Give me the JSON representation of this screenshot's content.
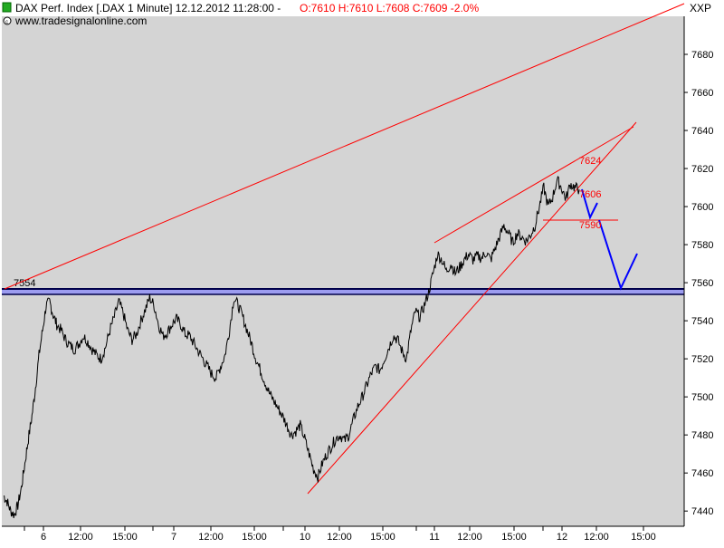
{
  "header": {
    "title_prefix": "DAX Perf. Index [.DAX  1 Minute] 12.12.2012 11:28:00 -",
    "ohlc_text": "O:7610 H:7610 L:7608 C:7609 -2.0%",
    "source": "www.tradesignalonline.com",
    "symbol_tag": "XXP"
  },
  "colors": {
    "plot_bg": "#d4d4d4",
    "page_bg": "#ffffff",
    "price": "#000000",
    "trendline": "#ff0000",
    "projection": "#0000ff",
    "support_band": "#9c9cf0",
    "support_edge": "#00004a",
    "ohlc_text": "#ff0000"
  },
  "chart_data": {
    "type": "line",
    "ylim": [
      7432,
      7700
    ],
    "y_ticks": [
      7440,
      7460,
      7480,
      7500,
      7520,
      7540,
      7560,
      7580,
      7600,
      7620,
      7640,
      7660,
      7680
    ],
    "x_tick_labels": [
      "6",
      "12:00",
      "15:00",
      "7",
      "12:00",
      "15:00",
      "10",
      "12:00",
      "15:00",
      "11",
      "12:00",
      "15:00",
      "12",
      "12:00",
      "15:00"
    ],
    "price_series": {
      "name": "DAX",
      "points": [
        [
          0,
          7448
        ],
        [
          0.4,
          7445
        ],
        [
          0.8,
          7440
        ],
        [
          1.2,
          7438
        ],
        [
          1.6,
          7443
        ],
        [
          2.0,
          7452
        ],
        [
          2.4,
          7465
        ],
        [
          2.8,
          7478
        ],
        [
          3.2,
          7490
        ],
        [
          3.6,
          7505
        ],
        [
          4.0,
          7522
        ],
        [
          4.4,
          7535
        ],
        [
          4.8,
          7548
        ],
        [
          5.2,
          7550
        ],
        [
          5.6,
          7543
        ],
        [
          6.0,
          7538
        ],
        [
          6.5,
          7535
        ],
        [
          7.0,
          7530
        ],
        [
          7.5,
          7527
        ],
        [
          8.0,
          7525
        ],
        [
          8.5,
          7528
        ],
        [
          9.0,
          7532
        ],
        [
          9.5,
          7529
        ],
        [
          10.0,
          7525
        ],
        [
          10.5,
          7522
        ],
        [
          11.0,
          7520
        ],
        [
          11.5,
          7526
        ],
        [
          12.0,
          7535
        ],
        [
          12.5,
          7542
        ],
        [
          13.0,
          7550
        ],
        [
          13.5,
          7544
        ],
        [
          14.0,
          7535
        ],
        [
          14.5,
          7530
        ],
        [
          15.0,
          7533
        ],
        [
          15.5,
          7540
        ],
        [
          16.0,
          7546
        ],
        [
          16.5,
          7552
        ],
        [
          17.0,
          7548
        ],
        [
          17.5,
          7538
        ],
        [
          18.0,
          7532
        ],
        [
          18.5,
          7534
        ],
        [
          19.0,
          7538
        ],
        [
          19.5,
          7541
        ],
        [
          20.0,
          7538
        ],
        [
          20.5,
          7533
        ],
        [
          21.0,
          7532
        ],
        [
          21.5,
          7528
        ],
        [
          22.0,
          7524
        ],
        [
          22.5,
          7520
        ],
        [
          23.0,
          7516
        ],
        [
          23.5,
          7512
        ],
        [
          24.0,
          7510
        ],
        [
          24.5,
          7516
        ],
        [
          25.0,
          7522
        ],
        [
          25.5,
          7535
        ],
        [
          26.0,
          7552
        ],
        [
          26.5,
          7548
        ],
        [
          27.0,
          7542
        ],
        [
          27.5,
          7535
        ],
        [
          28.0,
          7528
        ],
        [
          28.5,
          7520
        ],
        [
          29.0,
          7514
        ],
        [
          29.5,
          7508
        ],
        [
          30.0,
          7502
        ],
        [
          30.5,
          7498
        ],
        [
          31.0,
          7494
        ],
        [
          31.5,
          7490
        ],
        [
          32.0,
          7485
        ],
        [
          32.5,
          7480
        ],
        [
          33.0,
          7482
        ],
        [
          33.5,
          7485
        ],
        [
          34.0,
          7478
        ],
        [
          34.5,
          7470
        ],
        [
          35.0,
          7462
        ],
        [
          35.5,
          7458
        ],
        [
          36.0,
          7465
        ],
        [
          36.5,
          7470
        ],
        [
          37.0,
          7474
        ],
        [
          37.5,
          7478
        ],
        [
          38.0,
          7480
        ],
        [
          38.5,
          7477
        ],
        [
          39.0,
          7480
        ],
        [
          39.5,
          7488
        ],
        [
          40.0,
          7495
        ],
        [
          40.5,
          7500
        ],
        [
          41.0,
          7506
        ],
        [
          41.5,
          7512
        ],
        [
          42.0,
          7516
        ],
        [
          42.5,
          7514
        ],
        [
          43.0,
          7520
        ],
        [
          43.5,
          7526
        ],
        [
          44.0,
          7532
        ],
        [
          44.5,
          7530
        ],
        [
          45.0,
          7524
        ],
        [
          45.5,
          7520
        ],
        [
          46.0,
          7535
        ],
        [
          46.5,
          7545
        ],
        [
          47.0,
          7542
        ],
        [
          47.5,
          7548
        ],
        [
          48.0,
          7555
        ],
        [
          48.5,
          7565
        ],
        [
          49.0,
          7575
        ],
        [
          49.5,
          7572
        ],
        [
          50.0,
          7566
        ],
        [
          50.5,
          7570
        ],
        [
          51.0,
          7565
        ],
        [
          51.5,
          7568
        ],
        [
          52.0,
          7572
        ],
        [
          52.5,
          7575
        ],
        [
          53.0,
          7572
        ],
        [
          53.5,
          7574
        ],
        [
          54.0,
          7573
        ],
        [
          54.5,
          7576
        ],
        [
          55.0,
          7572
        ],
        [
          55.5,
          7578
        ],
        [
          56.0,
          7584
        ],
        [
          56.5,
          7590
        ],
        [
          57.0,
          7586
        ],
        [
          57.5,
          7581
        ],
        [
          58.0,
          7586
        ],
        [
          58.5,
          7584
        ],
        [
          59.0,
          7582
        ],
        [
          59.5,
          7585
        ],
        [
          60.0,
          7590
        ],
        [
          60.5,
          7600
        ],
        [
          61.0,
          7610
        ],
        [
          61.5,
          7600
        ],
        [
          62.0,
          7605
        ],
        [
          62.5,
          7614
        ],
        [
          63.0,
          7610
        ],
        [
          63.5,
          7604
        ],
        [
          64.0,
          7612
        ],
        [
          64.5,
          7610
        ],
        [
          65.0,
          7609
        ]
      ]
    },
    "annotations": {
      "support_level_label": "7554",
      "level_7624": "7624",
      "level_7606": "7606",
      "level_7590": "7590"
    }
  }
}
